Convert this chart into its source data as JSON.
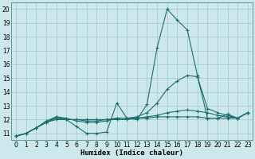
{
  "xlabel": "Humidex (Indice chaleur)",
  "background_color": "#cce8ec",
  "grid_color": "#aacccc",
  "line_color": "#1a6e6e",
  "xlim": [
    -0.5,
    23.5
  ],
  "ylim": [
    10.5,
    20.5
  ],
  "yticks": [
    11,
    12,
    13,
    14,
    15,
    16,
    17,
    18,
    19,
    20
  ],
  "xticks": [
    0,
    1,
    2,
    3,
    4,
    5,
    6,
    7,
    8,
    9,
    10,
    11,
    12,
    13,
    14,
    15,
    16,
    17,
    18,
    19,
    20,
    21,
    22,
    23
  ],
  "lines": [
    {
      "x": [
        0,
        1,
        2,
        3,
        4,
        5,
        6,
        7,
        8,
        9,
        10,
        11,
        12,
        13,
        14,
        15,
        16,
        17,
        18,
        19,
        20,
        21,
        22,
        23
      ],
      "y": [
        10.8,
        11.0,
        11.4,
        11.9,
        12.2,
        12.0,
        11.5,
        11.0,
        11.0,
        11.1,
        13.2,
        12.1,
        12.0,
        13.1,
        17.2,
        20.0,
        19.2,
        18.5,
        15.2,
        12.1,
        12.1,
        12.4,
        12.1,
        12.5
      ]
    },
    {
      "x": [
        0,
        1,
        2,
        3,
        4,
        5,
        6,
        7,
        8,
        9,
        10,
        11,
        12,
        13,
        14,
        15,
        16,
        17,
        18,
        19,
        20,
        21,
        22,
        23
      ],
      "y": [
        10.8,
        11.0,
        11.4,
        11.8,
        12.2,
        12.1,
        11.9,
        11.8,
        11.8,
        11.9,
        12.1,
        12.1,
        12.2,
        12.5,
        13.2,
        14.2,
        14.8,
        15.2,
        15.1,
        12.8,
        12.5,
        12.3,
        12.1,
        12.5
      ]
    },
    {
      "x": [
        0,
        1,
        2,
        3,
        4,
        5,
        6,
        7,
        8,
        9,
        10,
        11,
        12,
        13,
        14,
        15,
        16,
        17,
        18,
        19,
        20,
        21,
        22,
        23
      ],
      "y": [
        10.8,
        11.0,
        11.4,
        11.8,
        12.1,
        12.0,
        12.0,
        11.9,
        11.9,
        12.0,
        12.1,
        12.1,
        12.1,
        12.2,
        12.3,
        12.5,
        12.6,
        12.7,
        12.6,
        12.5,
        12.3,
        12.2,
        12.1,
        12.5
      ]
    },
    {
      "x": [
        0,
        1,
        2,
        3,
        4,
        5,
        6,
        7,
        8,
        9,
        10,
        11,
        12,
        13,
        14,
        15,
        16,
        17,
        18,
        19,
        20,
        21,
        22,
        23
      ],
      "y": [
        10.8,
        11.0,
        11.4,
        11.8,
        12.0,
        12.0,
        12.0,
        12.0,
        12.0,
        12.0,
        12.0,
        12.0,
        12.1,
        12.1,
        12.2,
        12.2,
        12.2,
        12.2,
        12.2,
        12.1,
        12.1,
        12.1,
        12.1,
        12.5
      ]
    }
  ]
}
